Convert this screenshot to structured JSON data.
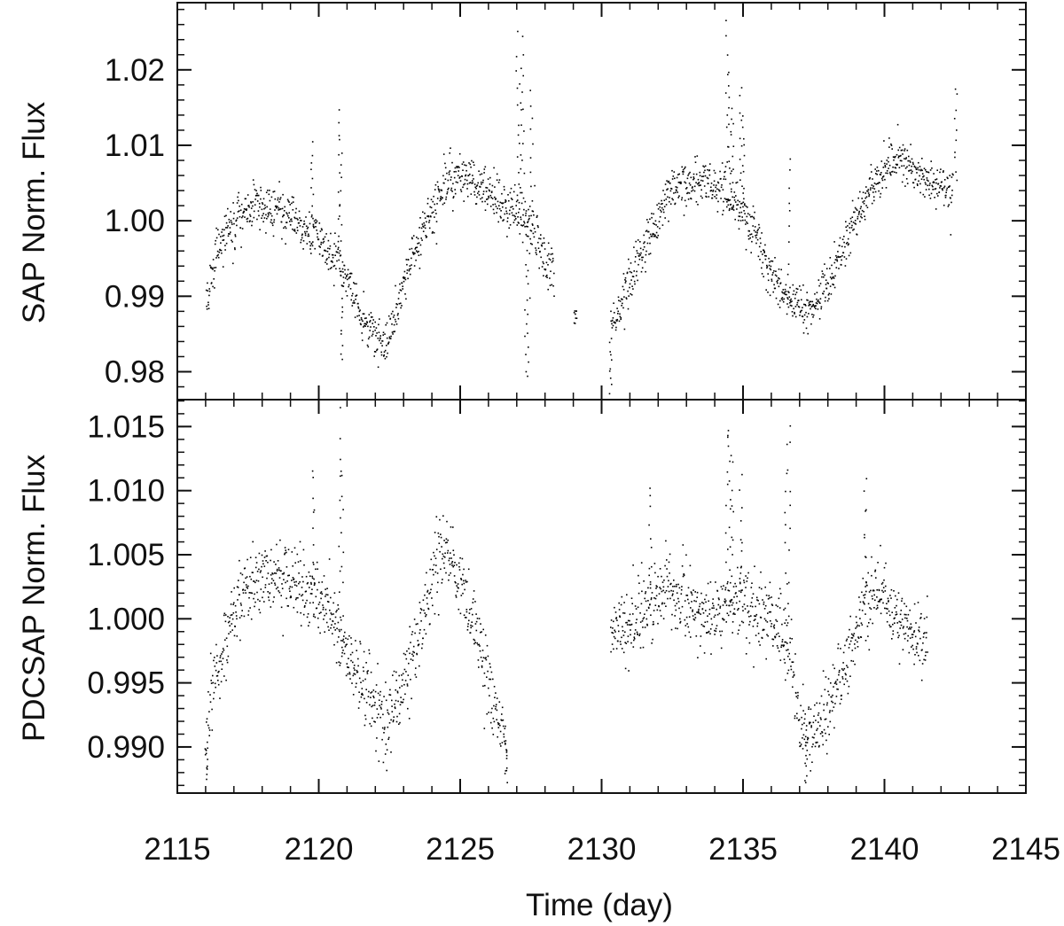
{
  "chart_data": [
    {
      "type": "scatter",
      "panel": "top",
      "ylabel": "SAP Norm. Flux",
      "xlim": [
        2115,
        2145
      ],
      "ylim": [
        0.9763,
        1.0289
      ],
      "yticks": [
        0.98,
        0.99,
        1.0,
        1.01,
        1.02
      ],
      "ytick_labels": [
        "0.98",
        "0.99",
        "1.00",
        "1.01",
        "1.02"
      ],
      "marker_color": "#000000",
      "trend": {
        "x": [
          2116.0,
          2116.3,
          2116.7,
          2117.2,
          2117.8,
          2118.5,
          2119.2,
          2119.9,
          2120.5,
          2121.0,
          2121.5,
          2122.0,
          2122.4,
          2122.9,
          2123.4,
          2123.9,
          2124.4,
          2124.9,
          2125.4,
          2126.0,
          2126.6,
          2127.1,
          2127.6,
          2128.2,
          2129.0,
          2129.1,
          2130.3,
          2130.8,
          2131.3,
          2131.8,
          2132.3,
          2132.9,
          2133.5,
          2134.1,
          2134.6,
          2135.1,
          2135.6,
          2136.1,
          2136.6,
          2137.1,
          2137.6,
          2138.1,
          2138.6,
          2139.1,
          2139.6,
          2140.1,
          2140.6,
          2141.1,
          2141.6,
          2142.1,
          2142.4
        ],
        "y": [
          0.9895,
          0.995,
          0.9985,
          1.001,
          1.0022,
          1.002,
          1.0003,
          0.998,
          0.9955,
          0.992,
          0.9875,
          0.9838,
          0.9845,
          0.9905,
          0.9965,
          1.001,
          1.0045,
          1.006,
          1.0055,
          1.004,
          1.002,
          1.001,
          0.999,
          0.994,
          0.9875,
          0.987,
          0.9855,
          0.9905,
          0.995,
          0.999,
          1.003,
          1.005,
          1.005,
          1.004,
          1.003,
          1.0005,
          0.997,
          0.992,
          0.989,
          0.9885,
          0.9895,
          0.9925,
          0.997,
          1.0015,
          1.005,
          1.0075,
          1.008,
          1.0065,
          1.005,
          1.0045,
          1.004
        ],
        "scatter": 0.0015
      },
      "segments": [
        [
          2116.0,
          2128.3
        ],
        [
          2129.0,
          2129.1
        ],
        [
          2130.3,
          2142.4
        ]
      ],
      "outliers": [
        [
          2119.75,
          1.0105
        ],
        [
          2120.7,
          1.015
        ],
        [
          2120.75,
          1.0108
        ],
        [
          2120.8,
          0.981
        ],
        [
          2127.0,
          1.025
        ],
        [
          2127.2,
          1.024
        ],
        [
          2127.1,
          1.02
        ],
        [
          2127.3,
          0.9805
        ],
        [
          2127.4,
          0.9795
        ],
        [
          2127.5,
          1.0175
        ],
        [
          2134.4,
          1.0265
        ],
        [
          2134.5,
          1.02
        ],
        [
          2134.6,
          1.0145
        ],
        [
          2134.9,
          1.0185
        ],
        [
          2135.0,
          1.014
        ],
        [
          2136.6,
          1.0085
        ],
        [
          2142.5,
          1.018
        ],
        [
          2130.3,
          0.9775
        ]
      ]
    },
    {
      "type": "scatter",
      "panel": "bottom",
      "ylabel": "PDCSAP Norm. Flux",
      "xlabel": "Time (day)",
      "xlim": [
        2115,
        2145
      ],
      "xticks": [
        2115,
        2120,
        2125,
        2130,
        2135,
        2140,
        2145
      ],
      "xtick_labels": [
        "2115",
        "2120",
        "2125",
        "2130",
        "2135",
        "2140",
        "2145"
      ],
      "ylim": [
        0.9864,
        1.0171
      ],
      "yticks": [
        0.99,
        0.995,
        1.0,
        1.005,
        1.01,
        1.015
      ],
      "ytick_labels": [
        "0.990",
        "0.995",
        "1.000",
        "1.005",
        "1.010",
        "1.015"
      ],
      "marker_color": "#000000",
      "trend": {
        "x": [
          2116.0,
          2116.3,
          2116.8,
          2117.3,
          2117.9,
          2118.6,
          2119.3,
          2119.9,
          2120.4,
          2120.9,
          2121.4,
          2121.9,
          2122.4,
          2122.9,
          2123.4,
          2123.9,
          2124.3,
          2124.7,
          2125.1,
          2125.6,
          2126.1,
          2126.6,
          2130.3,
          2130.8,
          2131.3,
          2131.8,
          2132.3,
          2132.8,
          2133.3,
          2133.8,
          2134.3,
          2134.8,
          2135.3,
          2135.8,
          2136.3,
          2136.7,
          2137.0,
          2137.4,
          2137.8,
          2138.3,
          2138.8,
          2139.3,
          2139.8,
          2140.3,
          2140.8,
          2141.2,
          2141.5
        ],
        "y": [
          0.9905,
          0.995,
          0.9995,
          1.002,
          1.0032,
          1.0033,
          1.0028,
          1.0018,
          1.0005,
          0.998,
          0.9955,
          0.993,
          0.9925,
          0.9945,
          0.998,
          1.0025,
          1.0052,
          1.0048,
          1.002,
          0.998,
          0.994,
          0.9905,
          0.999,
          0.9992,
          1.0005,
          1.0015,
          1.0022,
          1.0015,
          1.0005,
          1.0002,
          1.0008,
          1.0015,
          1.001,
          1.0002,
          0.9995,
          0.997,
          0.9915,
          0.991,
          0.9925,
          0.995,
          0.998,
          1.0015,
          1.0028,
          1.0005,
          0.999,
          0.998,
          0.9988
        ],
        "scatter": 0.0014
      },
      "segments": [
        [
          2116.0,
          2126.6
        ],
        [
          2130.3,
          2141.5
        ]
      ],
      "outliers": [
        [
          2119.8,
          1.0118
        ],
        [
          2120.7,
          1.0162
        ],
        [
          2120.8,
          1.0125
        ],
        [
          2116.0,
          0.9878
        ],
        [
          2126.6,
          0.9872
        ],
        [
          2131.7,
          1.0103
        ],
        [
          2134.4,
          1.0165
        ],
        [
          2134.5,
          1.0152
        ],
        [
          2134.6,
          1.0125
        ],
        [
          2134.9,
          1.0105
        ],
        [
          2136.6,
          1.0158
        ],
        [
          2136.5,
          1.013
        ],
        [
          2139.3,
          1.0108
        ],
        [
          2137.2,
          0.9872
        ]
      ]
    }
  ]
}
